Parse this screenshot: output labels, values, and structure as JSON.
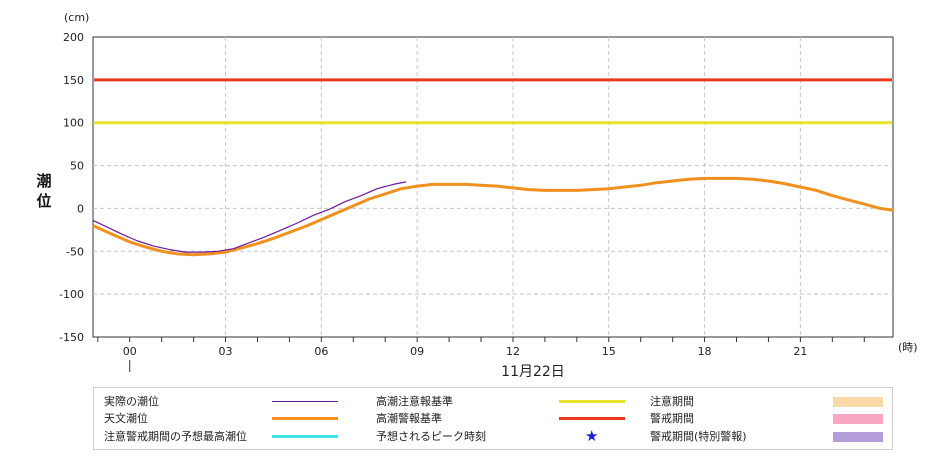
{
  "chart_data": {
    "type": "line",
    "unit_label": "(cm)",
    "ylabel": "潮位",
    "x_unit_label": "(時)",
    "date_label": "11月22日",
    "ylim": [
      -150,
      200
    ],
    "yticks": [
      200,
      150,
      100,
      50,
      0,
      -50,
      -100,
      -150
    ],
    "xlim": [
      -1.15,
      23.9
    ],
    "xticks": [
      {
        "hour": 0,
        "label": "00"
      },
      {
        "hour": 3,
        "label": "03"
      },
      {
        "hour": 6,
        "label": "06"
      },
      {
        "hour": 9,
        "label": "09"
      },
      {
        "hour": 12,
        "label": "12"
      },
      {
        "hour": 15,
        "label": "15"
      },
      {
        "hour": 18,
        "label": "18"
      },
      {
        "hour": 21,
        "label": "21"
      }
    ],
    "grid": true,
    "series": [
      {
        "name": "実際の潮位",
        "color": "#6a1b9a",
        "x": [
          -1.15,
          -0.75,
          -0.25,
          0.25,
          0.75,
          1.25,
          1.75,
          2.25,
          2.75,
          3.25,
          3.75,
          4.25,
          4.75,
          5.25,
          5.75,
          6.25,
          6.75,
          7.25,
          7.75,
          8.25,
          8.65
        ],
        "y": [
          -14,
          -21,
          -30,
          -38,
          -44,
          -48,
          -51,
          -51,
          -50,
          -47,
          -40,
          -33,
          -25,
          -17,
          -8,
          -1,
          8,
          15,
          23,
          28,
          31
        ]
      },
      {
        "name": "天文潮位",
        "color": "#f0901e",
        "x": [
          -1.15,
          -0.5,
          0,
          0.5,
          1,
          1.5,
          2,
          2.5,
          3,
          3.5,
          4,
          4.5,
          5,
          5.5,
          6,
          6.5,
          7,
          7.5,
          8,
          8.5,
          9,
          9.5,
          10,
          10.5,
          11,
          11.5,
          12,
          12.5,
          13,
          13.5,
          14,
          14.5,
          15,
          15.5,
          16,
          16.5,
          17,
          17.5,
          18,
          18.5,
          19,
          19.5,
          20,
          20.5,
          21,
          21.5,
          22,
          22.5,
          23,
          23.5,
          23.9
        ],
        "y": [
          -20,
          -31,
          -39,
          -45,
          -50,
          -53,
          -54,
          -53,
          -51,
          -46,
          -41,
          -35,
          -28,
          -21,
          -13,
          -5,
          3,
          11,
          17,
          23,
          26,
          28,
          28,
          28,
          27,
          26,
          24,
          22,
          21,
          21,
          21,
          22,
          23,
          25,
          27,
          30,
          32,
          34,
          35,
          35,
          35,
          34,
          32,
          29,
          25,
          21,
          15,
          10,
          5,
          0,
          -2
        ]
      },
      {
        "name": "高潮注意報基準",
        "color": "#e8e42a",
        "y_const": 100
      },
      {
        "name": "高潮警報基準",
        "color": "#e8391c",
        "y_const": 150
      }
    ]
  },
  "legend": {
    "col1": [
      {
        "label": "実際の潮位",
        "swatch": "thin-line",
        "color": "#6a1b9a"
      },
      {
        "label": "天文潮位",
        "swatch": "thick-line",
        "color": "#f0901e"
      },
      {
        "label": "注意警戒期間の予想最高潮位",
        "swatch": "thick-line",
        "color": "#3ee6e6"
      }
    ],
    "col2": [
      {
        "label": "高潮注意報基準",
        "swatch": "thick-line",
        "color": "#e8e42a"
      },
      {
        "label": "高潮警報基準",
        "swatch": "thick-line",
        "color": "#e8391c"
      },
      {
        "label": "予想されるピーク時刻",
        "swatch": "star-icon",
        "color": "#1a1ae0"
      }
    ],
    "col3": [
      {
        "label": "注意期間",
        "swatch": "block",
        "color": "#fad9a8"
      },
      {
        "label": "警戒期間",
        "swatch": "block",
        "color": "#f7a8c0"
      },
      {
        "label": "警戒期間(特別警報)",
        "swatch": "block",
        "color": "#b39ddb"
      }
    ]
  }
}
